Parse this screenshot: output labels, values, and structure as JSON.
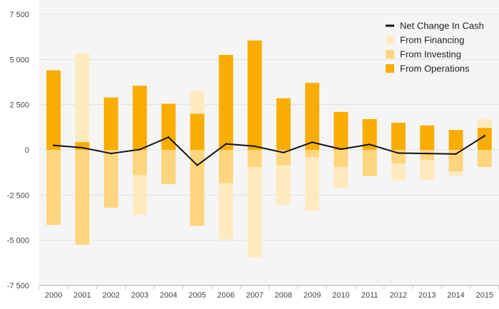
{
  "chart_data": {
    "type": "bar",
    "stacked": true,
    "categories": [
      "2000",
      "2001",
      "2002",
      "2003",
      "2004",
      "2005",
      "2006",
      "2007",
      "2008",
      "2009",
      "2010",
      "2011",
      "2012",
      "2013",
      "2014",
      "2015"
    ],
    "series": [
      {
        "name": "Net Change In Cash",
        "type": "line",
        "color": "#111111",
        "values": [
          250,
          120,
          -200,
          20,
          700,
          -850,
          330,
          200,
          -150,
          420,
          40,
          300,
          -180,
          -200,
          -230,
          780
        ]
      },
      {
        "name": "From Financing",
        "type": "bar",
        "color": "#ffeac0",
        "values": [
          0,
          4900,
          0,
          -2200,
          0,
          1250,
          -3100,
          -5000,
          -2200,
          -2950,
          -1150,
          0,
          -950,
          -1100,
          -250,
          470
        ]
      },
      {
        "name": "From Investing",
        "type": "bar",
        "color": "#fdd57e",
        "values": [
          -4150,
          -5250,
          -3200,
          -1400,
          -1900,
          -4200,
          -1850,
          -950,
          -850,
          -400,
          -950,
          -1450,
          -750,
          -550,
          -1200,
          -950
        ]
      },
      {
        "name": "From Operations",
        "type": "bar",
        "color": "#f8ad00",
        "values": [
          4400,
          430,
          2900,
          3550,
          2550,
          2000,
          5250,
          6050,
          2850,
          3700,
          2100,
          1700,
          1500,
          1350,
          1100,
          1220
        ]
      }
    ],
    "y_ticks": [
      7500,
      5000,
      2500,
      0,
      -2500,
      -5000,
      -7500
    ],
    "y_tick_labels": [
      "7 500",
      "5 000",
      "2 500",
      "0",
      "-2 500",
      "-5 000",
      "-7 500"
    ],
    "ylim": [
      -7500,
      7500
    ],
    "grid": true,
    "legend_position": "top-right",
    "legend_order": [
      "Net Change In Cash",
      "From Financing",
      "From Investing",
      "From Operations"
    ],
    "background_color": "#f5f5f5",
    "grid_color": "#e2e2e2"
  }
}
